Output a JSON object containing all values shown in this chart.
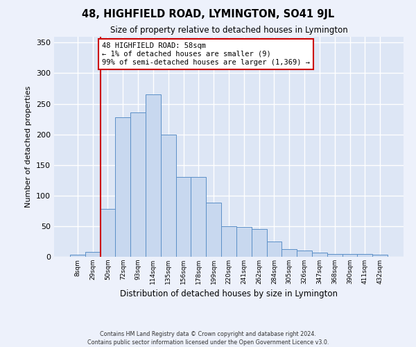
{
  "title": "48, HIGHFIELD ROAD, LYMINGTON, SO41 9JL",
  "subtitle": "Size of property relative to detached houses in Lymington",
  "xlabel": "Distribution of detached houses by size in Lymington",
  "ylabel": "Number of detached properties",
  "categories": [
    "8sqm",
    "29sqm",
    "50sqm",
    "72sqm",
    "93sqm",
    "114sqm",
    "135sqm",
    "156sqm",
    "178sqm",
    "199sqm",
    "220sqm",
    "241sqm",
    "262sqm",
    "284sqm",
    "305sqm",
    "326sqm",
    "347sqm",
    "368sqm",
    "390sqm",
    "411sqm",
    "432sqm"
  ],
  "values": [
    3,
    8,
    78,
    228,
    236,
    265,
    200,
    130,
    130,
    88,
    50,
    49,
    45,
    25,
    12,
    10,
    7,
    5,
    4,
    5,
    3
  ],
  "bar_color": "#c8d8ef",
  "bar_edge_color": "#5b8fc7",
  "highlight_label": "48 HIGHFIELD ROAD: 58sqm",
  "annotation_line1": "← 1% of detached houses are smaller (9)",
  "annotation_line2": "99% of semi-detached houses are larger (1,369) →",
  "vline_color": "#cc0000",
  "annotation_box_edge": "#cc0000",
  "plot_bg_color": "#dde6f5",
  "fig_bg_color": "#edf1fb",
  "grid_color": "#ffffff",
  "footer_line1": "Contains HM Land Registry data © Crown copyright and database right 2024.",
  "footer_line2": "Contains public sector information licensed under the Open Government Licence v3.0.",
  "ylim_max": 360,
  "yticks": [
    0,
    50,
    100,
    150,
    200,
    250,
    300,
    350
  ]
}
